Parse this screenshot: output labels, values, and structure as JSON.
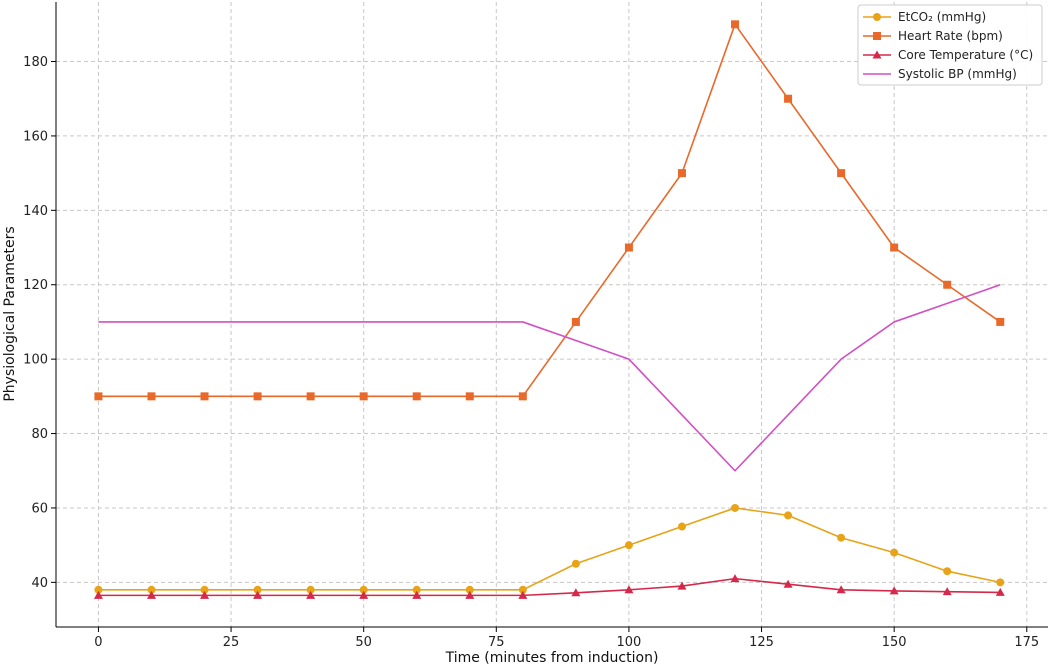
{
  "chart_data": {
    "type": "line",
    "xlabel": "Time (minutes from induction)",
    "ylabel": "Physiological Parameters",
    "xlim": [
      -8,
      179
    ],
    "ylim": [
      28,
      196
    ],
    "xticks": [
      0,
      25,
      50,
      75,
      100,
      125,
      150,
      175
    ],
    "yticks": [
      40,
      60,
      80,
      100,
      120,
      140,
      160,
      180
    ],
    "grid": true,
    "legend_position": "top-right",
    "x": [
      0,
      10,
      20,
      30,
      40,
      50,
      60,
      70,
      80,
      90,
      100,
      110,
      120,
      130,
      140,
      150,
      160,
      170
    ],
    "series": [
      {
        "name": "EtCO₂ (mmHg)",
        "color": "#e8a317",
        "marker": "circle",
        "values": [
          38,
          38,
          38,
          38,
          38,
          38,
          38,
          38,
          38,
          45,
          50,
          55,
          60,
          58,
          52,
          48,
          43,
          40
        ]
      },
      {
        "name": "Heart Rate (bpm)",
        "color": "#e8692a",
        "marker": "square",
        "values": [
          90,
          90,
          90,
          90,
          90,
          90,
          90,
          90,
          90,
          110,
          130,
          150,
          190,
          170,
          150,
          130,
          120,
          110
        ]
      },
      {
        "name": "Core Temperature (°C)",
        "color": "#d6284a",
        "marker": "triangle",
        "values": [
          36.5,
          36.5,
          36.5,
          36.5,
          36.5,
          36.5,
          36.5,
          36.5,
          36.5,
          37.2,
          38,
          39,
          41,
          39.5,
          38,
          37.7,
          37.5,
          37.3
        ]
      },
      {
        "name": "Systolic BP (mmHg)",
        "color": "#d24fc4",
        "marker": "none",
        "values": [
          110,
          110,
          110,
          110,
          110,
          110,
          110,
          110,
          110,
          105,
          100,
          85,
          70,
          85,
          100,
          110,
          115,
          120
        ]
      }
    ]
  }
}
